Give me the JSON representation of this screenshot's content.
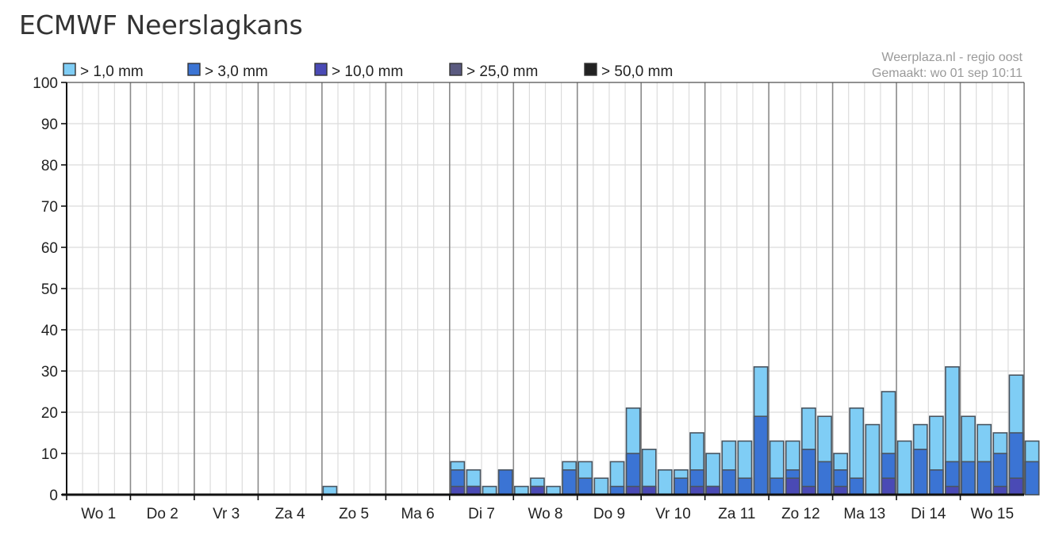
{
  "title": "ECMWF Neerslagkans",
  "credit": {
    "source": "Weerplaza.nl - regio oost",
    "made": "Gemaakt: wo 01 sep 10:11"
  },
  "chart_data": {
    "type": "bar",
    "stacked": "overlay",
    "title": "ECMWF Neerslagkans",
    "xlabel": "",
    "ylabel": "",
    "ylim": [
      0,
      100
    ],
    "yticks": [
      0,
      10,
      20,
      30,
      40,
      50,
      60,
      70,
      80,
      90,
      100
    ],
    "grid": true,
    "legend_position": "top-left",
    "day_labels": [
      "Wo 1",
      "Do 2",
      "Vr 3",
      "Za 4",
      "Zo 5",
      "Ma 6",
      "Di 7",
      "Wo 8",
      "Do 9",
      "Vr 10",
      "Za 11",
      "Zo 12",
      "Ma 13",
      "Di 14",
      "Wo 15"
    ],
    "bars_per_day": 4,
    "series": [
      {
        "name": "> 1,0 mm",
        "color": "#7fcdf5",
        "values": [
          0,
          0,
          0,
          0,
          0,
          0,
          0,
          0,
          0,
          0,
          0,
          0,
          0,
          0,
          0,
          0,
          2,
          0,
          0,
          0,
          0,
          0,
          0,
          0,
          8,
          6,
          2,
          6,
          2,
          4,
          2,
          8,
          8,
          4,
          8,
          21,
          11,
          6,
          6,
          15,
          10,
          13,
          13,
          31,
          13,
          13,
          21,
          19,
          10,
          21,
          17,
          25,
          13,
          17,
          19,
          31,
          19,
          17,
          15,
          29,
          13
        ]
      },
      {
        "name": "> 3,0 mm",
        "color": "#3b74d4",
        "values": [
          0,
          0,
          0,
          0,
          0,
          0,
          0,
          0,
          0,
          0,
          0,
          0,
          0,
          0,
          0,
          0,
          0,
          0,
          0,
          0,
          0,
          0,
          0,
          0,
          6,
          2,
          0,
          6,
          0,
          2,
          0,
          6,
          4,
          0,
          2,
          10,
          2,
          0,
          4,
          6,
          2,
          6,
          4,
          19,
          4,
          6,
          11,
          8,
          6,
          4,
          0,
          10,
          0,
          11,
          6,
          8,
          8,
          8,
          10,
          15,
          8
        ]
      },
      {
        "name": "> 10,0 mm",
        "color": "#4a4ab5",
        "values": [
          0,
          0,
          0,
          0,
          0,
          0,
          0,
          0,
          0,
          0,
          0,
          0,
          0,
          0,
          0,
          0,
          0,
          0,
          0,
          0,
          0,
          0,
          0,
          0,
          2,
          2,
          0,
          0,
          0,
          2,
          0,
          0,
          0,
          0,
          0,
          2,
          2,
          0,
          0,
          2,
          2,
          0,
          0,
          0,
          0,
          4,
          2,
          0,
          2,
          0,
          0,
          4,
          0,
          0,
          0,
          2,
          0,
          0,
          2,
          4,
          0
        ]
      },
      {
        "name": "> 25,0 mm",
        "color": "#5a5a80",
        "values": [
          0,
          0,
          0,
          0,
          0,
          0,
          0,
          0,
          0,
          0,
          0,
          0,
          0,
          0,
          0,
          0,
          0,
          0,
          0,
          0,
          0,
          0,
          0,
          0,
          0,
          0,
          0,
          0,
          0,
          0,
          0,
          0,
          0,
          0,
          0,
          0,
          0,
          0,
          0,
          0,
          0,
          0,
          0,
          0,
          0,
          0,
          0,
          0,
          0,
          0,
          0,
          0,
          0,
          0,
          0,
          0,
          0,
          0,
          0,
          0,
          0
        ]
      },
      {
        "name": "> 50,0 mm",
        "color": "#222222",
        "values": [
          0,
          0,
          0,
          0,
          0,
          0,
          0,
          0,
          0,
          0,
          0,
          0,
          0,
          0,
          0,
          0,
          0,
          0,
          0,
          0,
          0,
          0,
          0,
          0,
          0,
          0,
          0,
          0,
          0,
          0,
          0,
          0,
          0,
          0,
          0,
          0,
          0,
          0,
          0,
          0,
          0,
          0,
          0,
          0,
          0,
          0,
          0,
          0,
          0,
          0,
          0,
          0,
          0,
          0,
          0,
          0,
          0,
          0,
          0,
          0,
          0
        ]
      }
    ]
  }
}
